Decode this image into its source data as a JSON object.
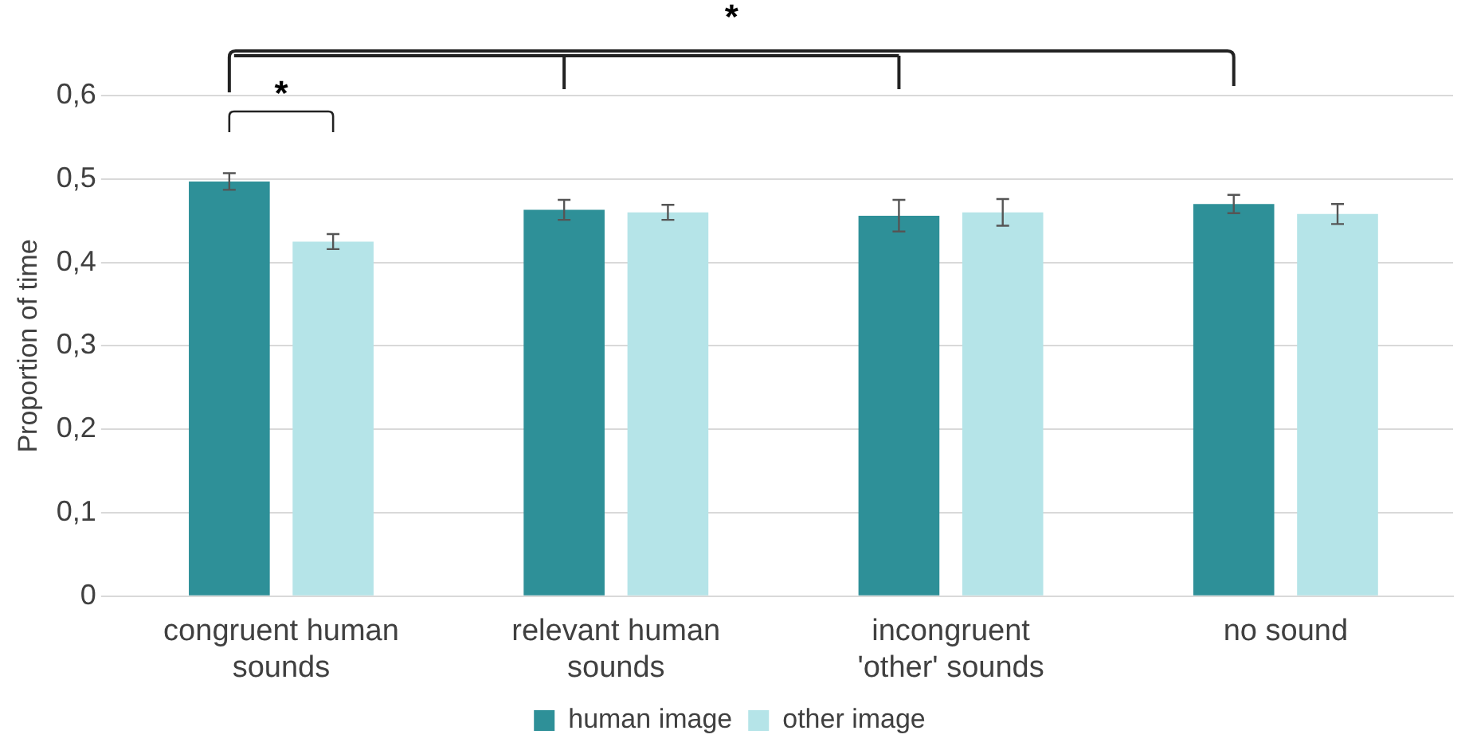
{
  "chart_data": {
    "type": "bar",
    "ylabel": "Proportion of time",
    "categories": [
      "congruent human sounds",
      "relevant human sounds",
      "incongruent 'other' sounds",
      "no sound"
    ],
    "series": [
      {
        "name": "human image",
        "color": "#2e9098",
        "values": [
          0.497,
          0.463,
          0.456,
          0.47
        ],
        "errors": [
          0.01,
          0.012,
          0.019,
          0.011
        ]
      },
      {
        "name": "other image",
        "color": "#b5e4e8",
        "values": [
          0.425,
          0.46,
          0.46,
          0.458
        ],
        "errors": [
          0.009,
          0.009,
          0.016,
          0.012
        ]
      }
    ],
    "ylim": [
      0,
      0.6
    ],
    "yticks": [
      {
        "value": 0,
        "label": "0"
      },
      {
        "value": 0.1,
        "label": "0,1"
      },
      {
        "value": 0.2,
        "label": "0,2"
      },
      {
        "value": 0.3,
        "label": "0,3"
      },
      {
        "value": 0.4,
        "label": "0,4"
      },
      {
        "value": 0.5,
        "label": "0,5"
      },
      {
        "value": 0.6,
        "label": "0,6"
      }
    ],
    "grid": "y",
    "legend": "bottom",
    "annotations": [
      "*",
      "*"
    ]
  }
}
